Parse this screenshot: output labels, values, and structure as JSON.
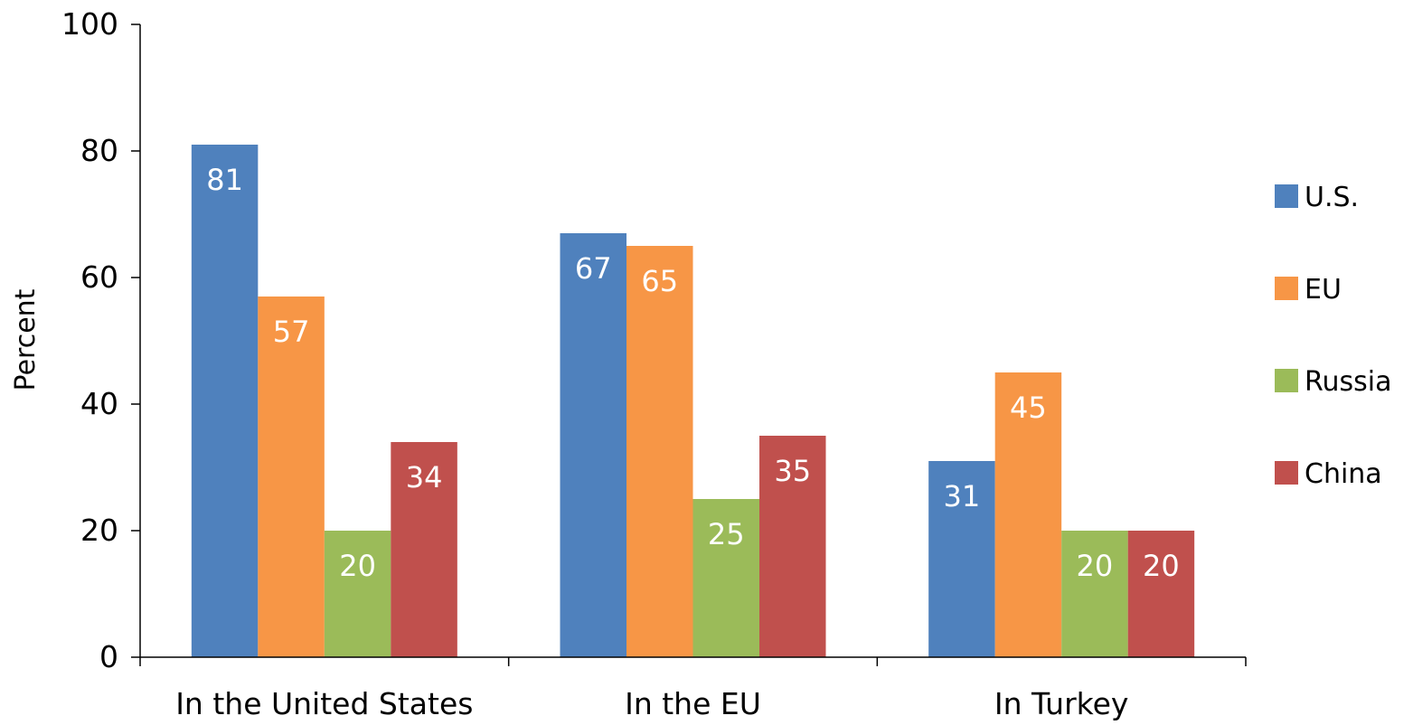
{
  "chart_data": {
    "type": "bar",
    "title": "",
    "xlabel": "",
    "ylabel": "Percent",
    "ylim": [
      0,
      100
    ],
    "yticks": [
      "0",
      "20",
      "40",
      "60",
      "80",
      "100"
    ],
    "categories": [
      "In the United States",
      "In the EU",
      "In Turkey"
    ],
    "series": [
      {
        "name": "U.S.",
        "color": "#4F81BD",
        "values": [
          81,
          67,
          31
        ]
      },
      {
        "name": "EU",
        "color": "#F79646",
        "values": [
          57,
          65,
          45
        ]
      },
      {
        "name": "Russia",
        "color": "#9BBB59",
        "values": [
          20,
          25,
          20
        ]
      },
      {
        "name": "China",
        "color": "#C0504D",
        "values": [
          34,
          35,
          20
        ]
      }
    ],
    "data_labels": true,
    "grid": false,
    "legend_position": "right"
  }
}
